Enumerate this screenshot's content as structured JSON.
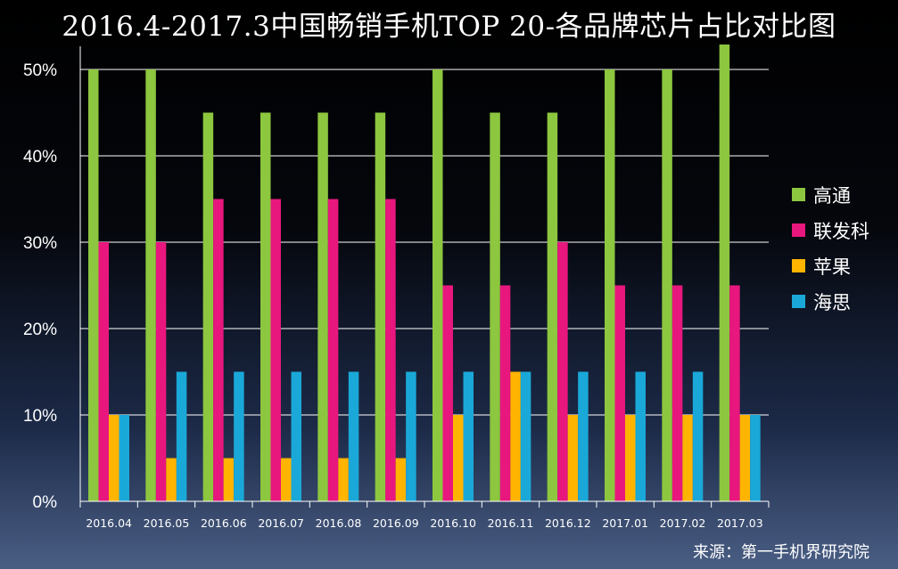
{
  "chart_data": {
    "type": "bar",
    "title": "2016.4-2017.3中国畅销手机TOP 20-各品牌芯片占比对比图",
    "categories": [
      "2016.04",
      "2016.05",
      "2016.06",
      "2016.07",
      "2016.08",
      "2016.09",
      "2016.10",
      "2016.11",
      "2016.12",
      "2017.01",
      "2017.02",
      "2017.03"
    ],
    "series": [
      {
        "name": "高通",
        "color": "#8dc63f",
        "values": [
          50,
          50,
          45,
          45,
          45,
          45,
          50,
          45,
          45,
          50,
          50,
          55
        ]
      },
      {
        "name": "联发科",
        "color": "#e8177d",
        "values": [
          30,
          30,
          35,
          35,
          35,
          35,
          25,
          25,
          30,
          25,
          25,
          25
        ]
      },
      {
        "name": "苹果",
        "color": "#ffb400",
        "values": [
          10,
          5,
          5,
          5,
          5,
          5,
          10,
          15,
          10,
          10,
          10,
          10
        ]
      },
      {
        "name": "海思",
        "color": "#1aa8d8",
        "values": [
          10,
          15,
          15,
          15,
          15,
          15,
          15,
          15,
          15,
          15,
          15,
          10
        ]
      }
    ],
    "y_ticks": [
      "0%",
      "10%",
      "20%",
      "30%",
      "40%",
      "50%"
    ],
    "ylim": [
      0,
      50
    ],
    "grid": true,
    "legend": "right",
    "xlabel": "",
    "ylabel": ""
  },
  "source": "来源：第一手机界研究院"
}
